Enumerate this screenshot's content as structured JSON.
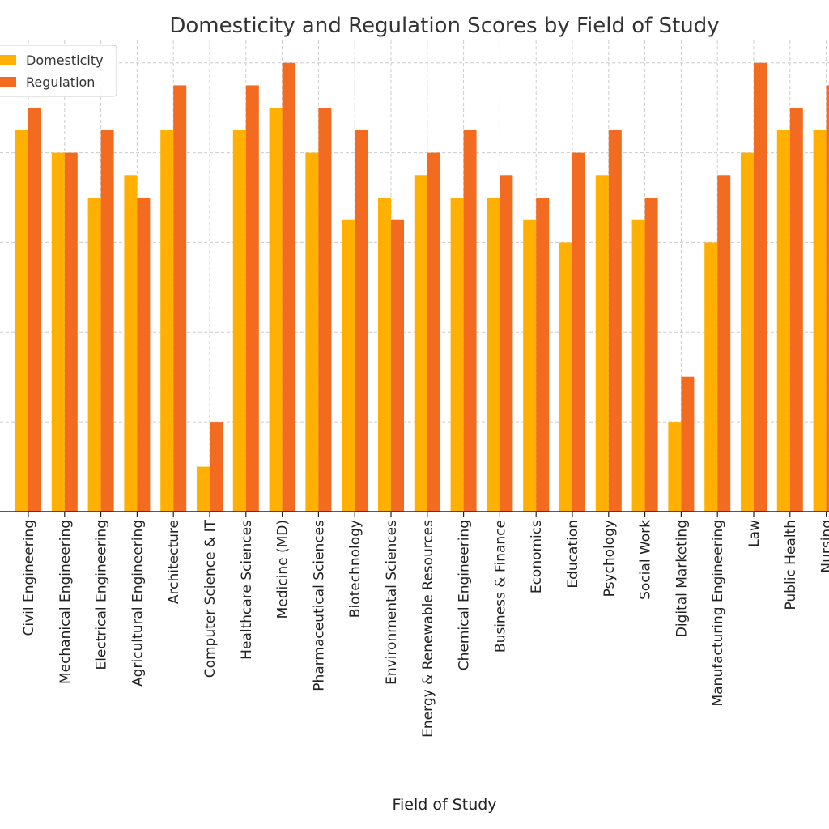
{
  "chart_data": {
    "type": "bar",
    "title": "Domesticity and Regulation Scores by Field of Study",
    "xlabel": "Field of Study",
    "ylabel": "",
    "ylim": [
      0,
      10.5
    ],
    "grid": true,
    "legend_position": "top-left",
    "categories": [
      "Civil Engineering",
      "Mechanical Engineering",
      "Electrical Engineering",
      "Agricultural Engineering",
      "Architecture",
      "Computer Science & IT",
      "Healthcare Sciences",
      "Medicine (MD)",
      "Pharmaceutical Sciences",
      "Biotechnology",
      "Environmental Sciences",
      "Energy & Renewable Resources",
      "Chemical Engineering",
      "Business & Finance",
      "Economics",
      "Education",
      "Psychology",
      "Social Work",
      "Digital Marketing",
      "Manufacturing Engineering",
      "Law",
      "Public Health",
      "Nursing"
    ],
    "series": [
      {
        "name": "Domesticity",
        "color": "#FFB000",
        "values": [
          8.5,
          8,
          7,
          7.5,
          8.5,
          1,
          8.5,
          9,
          8,
          6.5,
          7,
          7.5,
          7,
          7,
          6.5,
          6,
          7.5,
          6.5,
          2,
          6,
          8,
          8.5,
          8.5
        ]
      },
      {
        "name": "Regulation",
        "color": "#F26B21",
        "values": [
          9,
          8,
          8.5,
          7,
          9.5,
          2,
          9.5,
          10,
          9,
          8.5,
          6.5,
          8,
          8.5,
          7.5,
          7,
          8,
          8.5,
          7,
          3,
          7.5,
          10,
          9,
          9.5
        ]
      }
    ]
  }
}
